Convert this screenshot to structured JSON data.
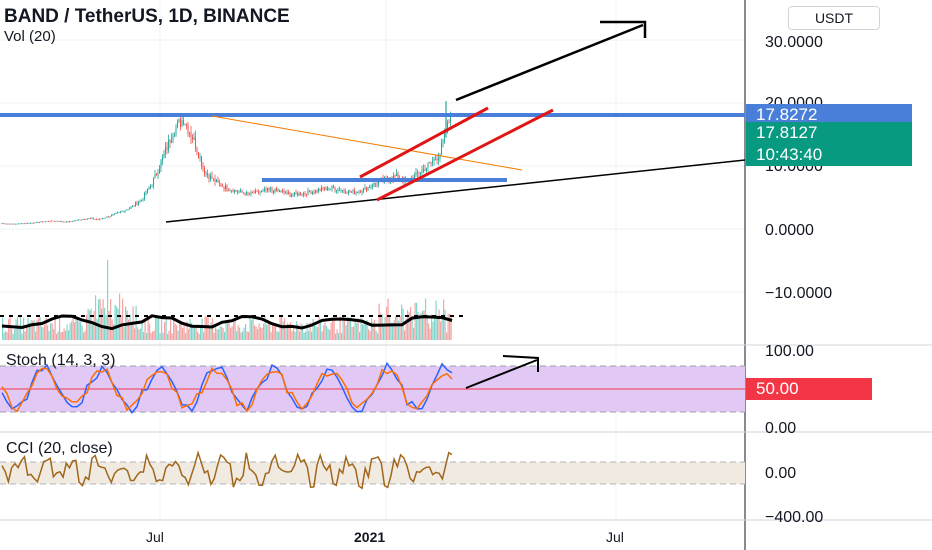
{
  "header": {
    "symbol_line": "BAND / TetherUS, 1D, BINANCE",
    "volume_label": "Vol (20)",
    "currency_button": "USDT"
  },
  "price_axis": {
    "ticks": [
      "30.0000",
      "20.0000",
      "10.0000",
      "0.0000",
      "−10.0000"
    ]
  },
  "price_tags": {
    "last_price": "17.8272",
    "prev_price": "17.8127",
    "countdown": "10:43:40"
  },
  "stoch": {
    "title": "Stoch (14, 3, 3)",
    "ticks": [
      "100.00",
      "0.00"
    ],
    "tag": "50.00"
  },
  "cci": {
    "title": "CCI (20, close)",
    "ticks": [
      "0.00",
      "−400.00"
    ]
  },
  "time_axis": {
    "labels": [
      "Jul",
      "2021",
      "Jul"
    ]
  },
  "colors": {
    "candle_up": "#26a69a",
    "candle_down": "#ef5350",
    "horizontal_line": "#4a7fd9",
    "channel": "#e01515",
    "trend_orange": "#f57c00",
    "stoch_bg": "#e2c9f5",
    "cci_line": "#a0671c",
    "last_tag": "#4a7fd9",
    "green_tag": "#089981",
    "stoch_tag": "#f23645"
  },
  "chart_data": {
    "type": "candlestick",
    "price_range": [
      -15,
      35
    ],
    "weekly_closes": [
      0.9,
      0.8,
      0.9,
      1.0,
      1.2,
      1.3,
      1.1,
      1.4,
      1.7,
      1.5,
      2.0,
      2.6,
      3.4,
      4.5,
      7.0,
      11.0,
      15.5,
      17.6,
      14.0,
      9.0,
      7.5,
      6.5,
      6.0,
      5.5,
      5.8,
      6.2,
      6.0,
      5.4,
      5.6,
      5.9,
      6.3,
      6.5,
      6.1,
      5.8,
      6.4,
      7.2,
      8.0,
      8.4,
      7.5,
      8.8,
      10.2,
      12.0,
      17.8
    ]
  }
}
